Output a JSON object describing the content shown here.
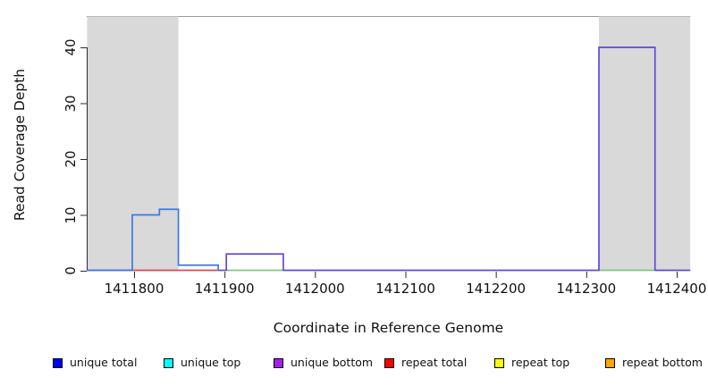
{
  "chart_data": {
    "type": "line",
    "subtype": "step-coverage-plot",
    "title": "",
    "xlabel": "Coordinate in Reference Genome",
    "ylabel": "Read Coverage Depth",
    "xlim": [
      1411748,
      1412415
    ],
    "ylim": [
      0,
      45.5
    ],
    "x_ticks": [
      1411800,
      1411900,
      1412000,
      1412100,
      1412200,
      1412300,
      1412400
    ],
    "y_ticks": [
      0,
      10,
      20,
      30,
      40
    ],
    "grid": false,
    "legend_position": "bottom-horizontal",
    "background_color": "#FFFFFF",
    "shaded_region_color": "#D9D9D9",
    "shaded_regions": [
      {
        "x_start": 1411748,
        "x_end": 1411849
      },
      {
        "x_start": 1412314,
        "x_end": 1412415
      }
    ],
    "series": [
      {
        "name": "unique total",
        "legend_color": "#0000FF",
        "rendered_color": "#3B79E2",
        "steps": [
          [
            1411748,
            0
          ],
          [
            1411798,
            10
          ],
          [
            1411828,
            11
          ],
          [
            1411849,
            1
          ],
          [
            1411893,
            0
          ],
          [
            1412415,
            0
          ]
        ]
      },
      {
        "name": "unique top",
        "legend_color": "#00FFFF",
        "rendered_color": "#7CC87C",
        "steps": [
          [
            1411748,
            0
          ],
          [
            1412415,
            0
          ]
        ]
      },
      {
        "name": "unique bottom",
        "legend_color": "#A020F0",
        "rendered_color": "#6247DC",
        "steps": [
          [
            1411748,
            0
          ],
          [
            1411902,
            3
          ],
          [
            1411965,
            0
          ],
          [
            1412314,
            40
          ],
          [
            1412376,
            0
          ],
          [
            1412415,
            0
          ]
        ]
      },
      {
        "name": "repeat total",
        "legend_color": "#FF0000",
        "rendered_color": "#DE4757",
        "steps": [
          [
            1411748,
            0
          ],
          [
            1412415,
            0
          ]
        ]
      },
      {
        "name": "repeat top",
        "legend_color": "#FFFF00",
        "rendered_color": "#7CC87C",
        "steps": [
          [
            1411748,
            0
          ],
          [
            1412415,
            0
          ]
        ]
      },
      {
        "name": "repeat bottom",
        "legend_color": "#FFA500",
        "rendered_color": "#6247DC",
        "steps": [
          [
            1411748,
            0
          ],
          [
            1412415,
            0
          ]
        ]
      }
    ],
    "visible_zero_line_segments": [
      {
        "color": "#4B5FE2",
        "from": 1411748,
        "to": 1411798
      },
      {
        "color": "#DE4757",
        "from": 1411798,
        "to": 1411893
      },
      {
        "color": "#6247DC",
        "from": 1411893,
        "to": 1411902
      },
      {
        "color": "#7CC87C",
        "from": 1411902,
        "to": 1411965
      },
      {
        "color": "#6247DC",
        "from": 1411965,
        "to": 1412314
      },
      {
        "color": "#7CC87C",
        "from": 1412314,
        "to": 1412376
      },
      {
        "color": "#6247DC",
        "from": 1412376,
        "to": 1412415
      }
    ],
    "legend": [
      {
        "label": "unique total",
        "color": "#0000FF"
      },
      {
        "label": "unique top",
        "color": "#00FFFF"
      },
      {
        "label": "unique bottom",
        "color": "#A020F0"
      },
      {
        "label": "repeat total",
        "color": "#FF0000"
      },
      {
        "label": "repeat top",
        "color": "#FFFF00"
      },
      {
        "label": "repeat bottom",
        "color": "#FFA500"
      }
    ]
  }
}
